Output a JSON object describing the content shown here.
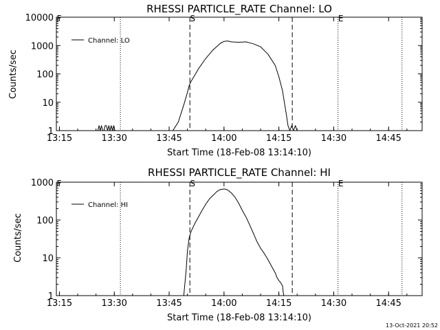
{
  "footer": {
    "timestamp": "13-Oct-2021 20:52"
  },
  "colors": {
    "background": "#ffffff",
    "foreground": "#000000"
  },
  "chart_data": [
    {
      "type": "line",
      "title": "RHESSI PARTICLE_RATE Channel: LO",
      "xlabel": "Start Time (18-Feb-08 13:14:10)",
      "ylabel": "Counts/sec",
      "y_scale": "log",
      "xlim": [
        "13:14:10",
        "14:54:10"
      ],
      "ylim": [
        1,
        10000
      ],
      "x_ticks": [
        "13:15",
        "13:30",
        "13:45",
        "14:00",
        "14:15",
        "14:30",
        "14:45"
      ],
      "y_ticks": [
        "1",
        "10",
        "100",
        "1000",
        "10000"
      ],
      "legend": {
        "position": "top-left",
        "entries": [
          "Channel: LO"
        ]
      },
      "markers": [
        {
          "label": "F",
          "time": "13:14:10",
          "style": "dotted"
        },
        {
          "label": "",
          "time": "13:31:40",
          "style": "dotted"
        },
        {
          "label": "S",
          "time": "13:50:40",
          "style": "dashed"
        },
        {
          "label": "",
          "time": "14:18:40",
          "style": "dashed"
        },
        {
          "label": "E",
          "time": "14:31:10",
          "style": "dotted"
        },
        {
          "label": "",
          "time": "14:48:40",
          "style": "dotted"
        }
      ],
      "series": [
        {
          "name": "Channel: LO",
          "x": [
            "13:25:30",
            "13:25:50",
            "13:26:10",
            "13:26:30",
            "13:26:50",
            "13:27:10",
            "13:27:30",
            "13:27:50",
            "13:28:10",
            "13:28:30",
            "13:28:50",
            "13:29:10",
            "13:29:30",
            "13:29:50",
            "13:30:10",
            "13:30:30",
            "13:46:00",
            "13:47:30",
            "13:49:00",
            "13:50:00",
            "13:50:30",
            "13:51:00",
            "13:52:00",
            "13:53:00",
            "13:55:00",
            "13:57:00",
            "13:59:00",
            "14:00:00",
            "14:01:00",
            "14:02:00",
            "14:04:00",
            "14:06:00",
            "14:07:00",
            "14:08:00",
            "14:10:00",
            "14:12:00",
            "14:14:00",
            "14:15:00",
            "14:16:00",
            "14:16:30",
            "14:17:00",
            "14:17:30",
            "14:18:00",
            "14:18:30",
            "14:19:00",
            "14:19:30",
            "14:20:00"
          ],
          "y": [
            1,
            1.5,
            1,
            1.5,
            1,
            1,
            1.5,
            1.5,
            1,
            1.5,
            1,
            1.5,
            1,
            1.5,
            1,
            1,
            1,
            2,
            8,
            22,
            40,
            55,
            90,
            150,
            350,
            700,
            1200,
            1400,
            1450,
            1350,
            1300,
            1350,
            1250,
            1150,
            900,
            500,
            200,
            80,
            25,
            10,
            4,
            1.5,
            1,
            1.5,
            1,
            1.5,
            1
          ]
        }
      ]
    },
    {
      "type": "line",
      "title": "RHESSI PARTICLE_RATE Channel: HI",
      "xlabel": "Start Time (18-Feb-08 13:14:10)",
      "ylabel": "Counts/sec",
      "y_scale": "log",
      "xlim": [
        "13:14:10",
        "14:54:10"
      ],
      "ylim": [
        1,
        1000
      ],
      "x_ticks": [
        "13:15",
        "13:30",
        "13:45",
        "14:00",
        "14:15",
        "14:30",
        "14:45"
      ],
      "y_ticks": [
        "1",
        "10",
        "100",
        "1000"
      ],
      "legend": {
        "position": "top-left",
        "entries": [
          "Channel: HI"
        ]
      },
      "markers": [
        {
          "label": "F",
          "time": "13:14:10",
          "style": "dotted"
        },
        {
          "label": "",
          "time": "13:31:40",
          "style": "dotted"
        },
        {
          "label": "S",
          "time": "13:50:40",
          "style": "dashed"
        },
        {
          "label": "",
          "time": "14:18:40",
          "style": "dashed"
        },
        {
          "label": "E",
          "time": "14:31:10",
          "style": "dotted"
        },
        {
          "label": "",
          "time": "14:48:40",
          "style": "dotted"
        }
      ],
      "series": [
        {
          "name": "Channel: HI",
          "x": [
            "13:49:00",
            "13:49:40",
            "13:50:00",
            "13:50:30",
            "13:51:00",
            "13:52:00",
            "13:53:00",
            "13:54:00",
            "13:55:00",
            "13:56:00",
            "13:57:00",
            "13:58:00",
            "13:59:00",
            "14:00:00",
            "14:00:30",
            "14:01:00",
            "14:02:00",
            "14:03:00",
            "14:04:00",
            "14:05:00",
            "14:06:00",
            "14:07:00",
            "14:08:00",
            "14:09:00",
            "14:10:00",
            "14:11:00",
            "14:12:00",
            "14:13:00",
            "14:14:00",
            "14:14:30",
            "14:15:00",
            "14:15:30",
            "14:16:00",
            "14:16:10",
            "14:16:20"
          ],
          "y": [
            1,
            5,
            15,
            35,
            50,
            80,
            120,
            180,
            260,
            360,
            450,
            560,
            640,
            660,
            650,
            620,
            520,
            400,
            280,
            180,
            120,
            75,
            45,
            27,
            18,
            13,
            9,
            6,
            4,
            3,
            2.5,
            2.2,
            1.8,
            1.3,
            1
          ]
        }
      ]
    }
  ]
}
